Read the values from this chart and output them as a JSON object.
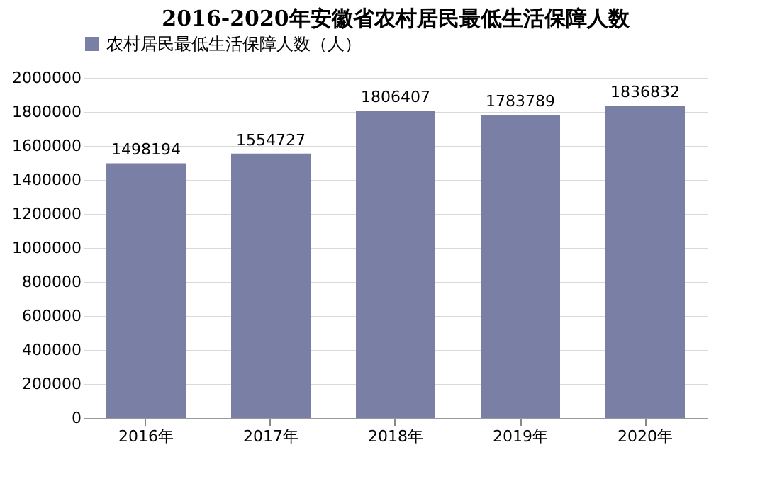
{
  "chart_data": {
    "type": "bar",
    "title": "2016-2020年安徽省农村居民最低生活保障人数",
    "categories": [
      "2016年",
      "2017年",
      "2018年",
      "2019年",
      "2020年"
    ],
    "series": [
      {
        "name": "农村居民最低生活保障人数（人）",
        "color": "#7a7fa5",
        "values": [
          1498194,
          1554727,
          1806407,
          1783789,
          1836832
        ]
      }
    ],
    "ylim": [
      0,
      2000000
    ],
    "yticks": [
      0,
      200000,
      400000,
      600000,
      800000,
      1000000,
      1200000,
      1400000,
      1600000,
      1800000,
      2000000
    ],
    "grid": "y",
    "legend": "top",
    "data_labels": true
  }
}
